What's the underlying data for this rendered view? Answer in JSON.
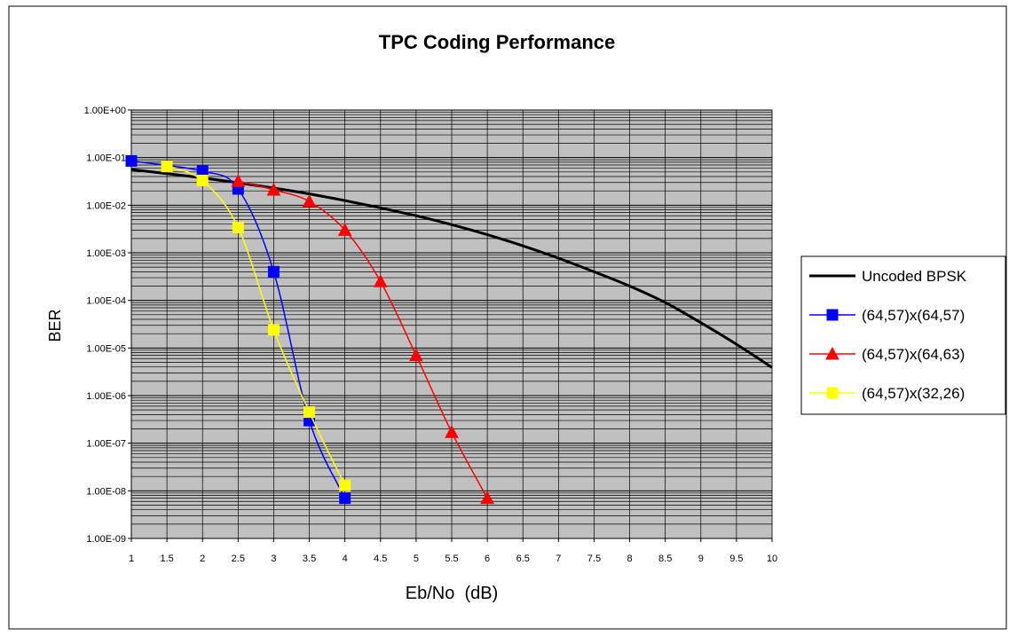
{
  "chart_data": {
    "type": "line",
    "title": "TPC Coding Performance",
    "xlabel": "Eb/No  (dB)",
    "ylabel": "BER",
    "xlim": [
      1,
      10
    ],
    "ylim": [
      1e-09,
      1
    ],
    "yscale": "log",
    "x_ticks": [
      "1",
      "1.5",
      "2",
      "2.5",
      "3",
      "3.5",
      "4",
      "4.5",
      "5",
      "5.5",
      "6",
      "6.5",
      "7",
      "7.5",
      "8",
      "8.5",
      "9",
      "9.5",
      "10"
    ],
    "y_ticks": [
      "1.00E+00",
      "1.00E-01",
      "1.00E-02",
      "1.00E-03",
      "1.00E-04",
      "1.00E-05",
      "1.00E-06",
      "1.00E-07",
      "1.00E-08",
      "1.00E-09"
    ],
    "grid": true,
    "legend_position": "right",
    "series": [
      {
        "name": "Uncoded BPSK",
        "color": "#000000",
        "marker": "none",
        "x": [
          1,
          1.5,
          2,
          2.5,
          3,
          3.5,
          4,
          4.5,
          5,
          5.5,
          6,
          6.5,
          7,
          7.5,
          8,
          8.5,
          9,
          9.5,
          10
        ],
        "y": [
          0.0563,
          0.0462,
          0.0375,
          0.0296,
          0.0229,
          0.0173,
          0.0125,
          0.0088,
          0.006,
          0.0039,
          0.0024,
          0.0014,
          0.00077,
          0.0004,
          0.0002,
          9e-05,
          3.4e-05,
          1.2e-05,
          3.9e-06
        ]
      },
      {
        "name": "(64,57)x(64,57)",
        "color": "#0000ff",
        "marker": "square",
        "x": [
          1,
          2,
          2.5,
          3,
          3.5,
          4
        ],
        "y": [
          0.085,
          0.052,
          0.022,
          0.0004,
          3e-07,
          7e-09
        ]
      },
      {
        "name": "(64,57)x(64,63)",
        "color": "#ff0000",
        "marker": "triangle",
        "x": [
          2.5,
          3,
          3.5,
          4,
          4.5,
          5,
          5.5,
          6
        ],
        "y": [
          0.032,
          0.021,
          0.012,
          0.003,
          0.00025,
          7e-06,
          1.7e-07,
          7e-09
        ]
      },
      {
        "name": "(64,57)x(32,26)",
        "color": "#ffff00",
        "marker": "square",
        "x": [
          1.5,
          2,
          2.5,
          3,
          3.5,
          4
        ],
        "y": [
          0.065,
          0.033,
          0.0034,
          2.4e-05,
          4.5e-07,
          1.3e-08
        ]
      }
    ]
  }
}
